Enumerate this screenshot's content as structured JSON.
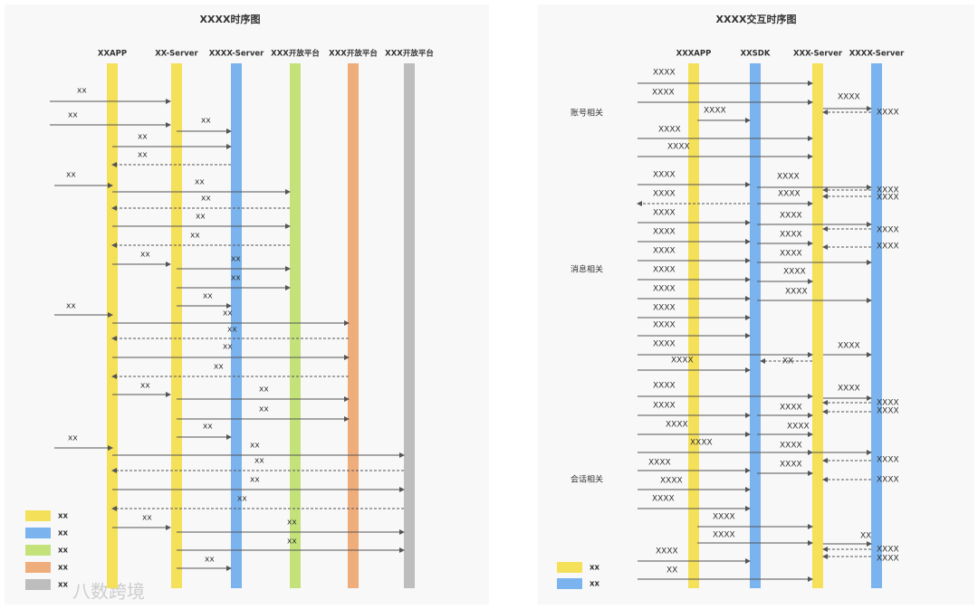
{
  "left": {
    "title": "XXXX时序图",
    "lifelines": [
      "XXAPP",
      "XX-Server",
      "XXXX-Server",
      "XXX开放平台",
      "XXX开放平台",
      "XXX开放平台"
    ],
    "messages": [
      "xx",
      "xx",
      "xx",
      "xx",
      "xx",
      "xx",
      "xx",
      "xx",
      "xx",
      "xx",
      "xx",
      "xx",
      "xx",
      "xx",
      "xx",
      "xx",
      "xx",
      "xx",
      "xx",
      "xx",
      "xx",
      "xx",
      "xx",
      "xx",
      "xx",
      "xx",
      "xx",
      "xx",
      "xx",
      "xx",
      "xx",
      "xx"
    ],
    "legend": [
      "xx",
      "xx",
      "xx",
      "xx",
      "xx"
    ]
  },
  "right": {
    "title": "XXXX交互时序图",
    "lifelines": [
      "XXXAPP",
      "XXSDK",
      "XXX-Server",
      "XXXX-Server"
    ],
    "groups": [
      "账号相关",
      "消息相关",
      "会话相关"
    ],
    "messages": [
      "XXXX",
      "XXXX",
      "XXXX",
      "XXXX",
      "XXXX",
      "XXXX",
      "XXXX",
      "XXXX",
      "XXXX",
      "XXXX",
      "XXXX",
      "XXXX",
      "XXXX",
      "XXXX",
      "XXXX",
      "XXXX",
      "XXXX",
      "XXXX",
      "XXXX",
      "XXXX",
      "XXXX",
      "XXXX",
      "XXXX",
      "XXXX",
      "XXXX",
      "XXXX",
      "XXXX",
      "XXXX",
      "XXXX",
      "XX",
      "XXXX",
      "XXXX",
      "XXXX",
      "XXXX",
      "XXXX",
      "XXXX",
      "XXXX",
      "XXXX",
      "XXXX",
      "XXXX",
      "XXXX",
      "XXXX",
      "XXXX",
      "XXXX",
      "XXXX",
      "XXXX",
      "XXXX",
      "XXXX",
      "XXXX",
      "XX",
      "XXXX",
      "XXXX",
      "XXXX",
      "XX"
    ],
    "legend": [
      "xx",
      "xx"
    ]
  },
  "watermark": "八数跨境"
}
